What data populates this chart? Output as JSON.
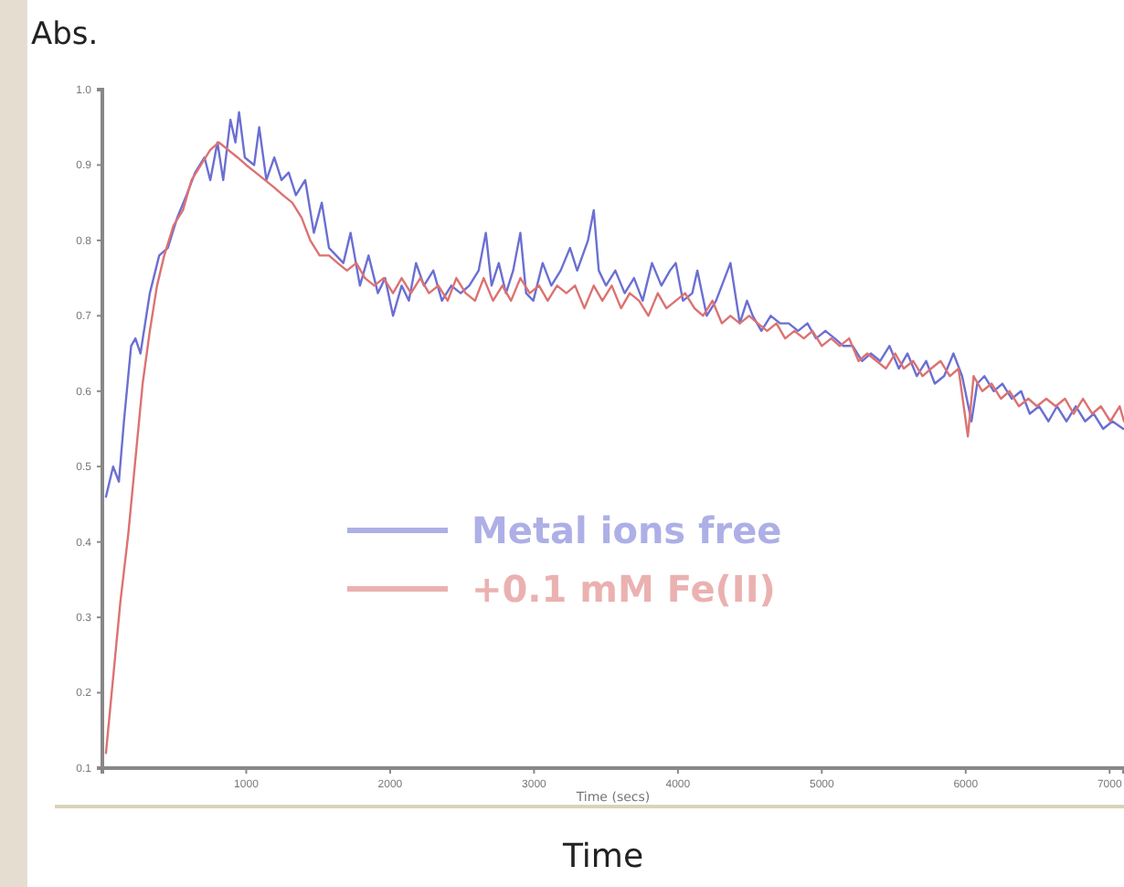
{
  "chart_data": {
    "type": "line",
    "ylabel": "Abs.",
    "xlabel": "Time (secs)",
    "annotations": [
      "Time"
    ],
    "xlim": [
      0,
      7100
    ],
    "xticks": [
      1000,
      2000,
      3000,
      4000,
      5000,
      6000,
      7000
    ],
    "ylim": [
      0.1,
      1.0
    ],
    "yticks": [
      0.1,
      0.2,
      0.3,
      0.4,
      0.5,
      0.6,
      0.7,
      0.8,
      0.9,
      {
        "value": 1.0,
        "label": "1.0"
      }
    ],
    "legend": "center",
    "grid": false,
    "line_style": "solid",
    "marker": "none",
    "series": [
      {
        "name": "Metal ions free",
        "color": "#6b6fd2",
        "x": [
          25,
          75,
          115,
          150,
          200,
          230,
          265,
          330,
          395,
          455,
          520,
          585,
          645,
          710,
          750,
          800,
          840,
          890,
          925,
          950,
          990,
          1055,
          1090,
          1140,
          1195,
          1245,
          1295,
          1345,
          1410,
          1470,
          1525,
          1575,
          1625,
          1675,
          1725,
          1790,
          1850,
          1915,
          1965,
          2020,
          2080,
          2130,
          2180,
          2235,
          2300,
          2360,
          2425,
          2490,
          2550,
          2615,
          2665,
          2705,
          2755,
          2805,
          2855,
          2905,
          2945,
          2995,
          3060,
          3120,
          3185,
          3250,
          3300,
          3375,
          3415,
          3450,
          3500,
          3565,
          3630,
          3695,
          3755,
          3820,
          3885,
          3945,
          3985,
          4035,
          4100,
          4135,
          4200,
          4265,
          4325,
          4365,
          4430,
          4480,
          4520,
          4580,
          4645,
          4710,
          4770,
          4835,
          4900,
          4960,
          5025,
          5090,
          5150,
          5215,
          5280,
          5340,
          5405,
          5470,
          5535,
          5595,
          5660,
          5725,
          5785,
          5850,
          5915,
          5975,
          6040,
          6080,
          6130,
          6195,
          6255,
          6320,
          6385,
          6445,
          6510,
          6575,
          6635,
          6700,
          6765,
          6830,
          6890,
          6955,
          7020,
          7095
        ],
        "values": [
          0.46,
          0.5,
          0.48,
          0.56,
          0.66,
          0.67,
          0.65,
          0.73,
          0.78,
          0.79,
          0.83,
          0.86,
          0.89,
          0.91,
          0.88,
          0.93,
          0.88,
          0.96,
          0.93,
          0.97,
          0.91,
          0.9,
          0.95,
          0.88,
          0.91,
          0.88,
          0.89,
          0.86,
          0.88,
          0.81,
          0.85,
          0.79,
          0.78,
          0.77,
          0.81,
          0.74,
          0.78,
          0.73,
          0.75,
          0.7,
          0.74,
          0.72,
          0.77,
          0.74,
          0.76,
          0.72,
          0.74,
          0.73,
          0.74,
          0.76,
          0.81,
          0.74,
          0.77,
          0.73,
          0.76,
          0.81,
          0.73,
          0.72,
          0.77,
          0.74,
          0.76,
          0.79,
          0.76,
          0.8,
          0.84,
          0.76,
          0.74,
          0.76,
          0.73,
          0.75,
          0.72,
          0.77,
          0.74,
          0.76,
          0.77,
          0.72,
          0.73,
          0.76,
          0.7,
          0.72,
          0.75,
          0.77,
          0.69,
          0.72,
          0.7,
          0.68,
          0.7,
          0.69,
          0.69,
          0.68,
          0.69,
          0.67,
          0.68,
          0.67,
          0.66,
          0.66,
          0.64,
          0.65,
          0.64,
          0.66,
          0.63,
          0.65,
          0.62,
          0.64,
          0.61,
          0.62,
          0.65,
          0.62,
          0.56,
          0.61,
          0.62,
          0.6,
          0.61,
          0.59,
          0.6,
          0.57,
          0.58,
          0.56,
          0.58,
          0.56,
          0.58,
          0.56,
          0.57,
          0.55,
          0.56,
          0.55
        ]
      },
      {
        "name": "+0.1 mM Fe(II)",
        "color": "#dc7272",
        "x": [
          25,
          75,
          125,
          180,
          230,
          280,
          330,
          380,
          430,
          495,
          560,
          620,
          685,
          750,
          810,
          875,
          940,
          1000,
          1065,
          1130,
          1195,
          1255,
          1320,
          1385,
          1445,
          1510,
          1575,
          1635,
          1700,
          1765,
          1825,
          1890,
          1955,
          2020,
          2080,
          2145,
          2210,
          2270,
          2335,
          2400,
          2460,
          2525,
          2590,
          2650,
          2715,
          2780,
          2840,
          2905,
          2970,
          3035,
          3095,
          3160,
          3225,
          3285,
          3350,
          3415,
          3475,
          3540,
          3605,
          3665,
          3730,
          3795,
          3860,
          3920,
          3985,
          4050,
          4115,
          4175,
          4240,
          4305,
          4365,
          4430,
          4495,
          4555,
          4620,
          4685,
          4745,
          4810,
          4875,
          4935,
          5000,
          5065,
          5125,
          5190,
          5255,
          5315,
          5380,
          5445,
          5510,
          5570,
          5635,
          5700,
          5760,
          5825,
          5890,
          5950,
          6015,
          6055,
          6115,
          6180,
          6245,
          6305,
          6370,
          6435,
          6495,
          6560,
          6625,
          6690,
          6750,
          6815,
          6880,
          6940,
          7005,
          7070,
          7100
        ],
        "values": [
          0.12,
          0.22,
          0.32,
          0.41,
          0.51,
          0.61,
          0.68,
          0.74,
          0.78,
          0.82,
          0.84,
          0.88,
          0.9,
          0.92,
          0.93,
          0.92,
          0.91,
          0.9,
          0.89,
          0.88,
          0.87,
          0.86,
          0.85,
          0.83,
          0.8,
          0.78,
          0.78,
          0.77,
          0.76,
          0.77,
          0.75,
          0.74,
          0.75,
          0.73,
          0.75,
          0.73,
          0.75,
          0.73,
          0.74,
          0.72,
          0.75,
          0.73,
          0.72,
          0.75,
          0.72,
          0.74,
          0.72,
          0.75,
          0.73,
          0.74,
          0.72,
          0.74,
          0.73,
          0.74,
          0.71,
          0.74,
          0.72,
          0.74,
          0.71,
          0.73,
          0.72,
          0.7,
          0.73,
          0.71,
          0.72,
          0.73,
          0.71,
          0.7,
          0.72,
          0.69,
          0.7,
          0.69,
          0.7,
          0.69,
          0.68,
          0.69,
          0.67,
          0.68,
          0.67,
          0.68,
          0.66,
          0.67,
          0.66,
          0.67,
          0.64,
          0.65,
          0.64,
          0.63,
          0.65,
          0.63,
          0.64,
          0.62,
          0.63,
          0.64,
          0.62,
          0.63,
          0.54,
          0.62,
          0.6,
          0.61,
          0.59,
          0.6,
          0.58,
          0.59,
          0.58,
          0.59,
          0.58,
          0.59,
          0.57,
          0.59,
          0.57,
          0.58,
          0.56,
          0.58,
          0.56
        ]
      }
    ]
  }
}
